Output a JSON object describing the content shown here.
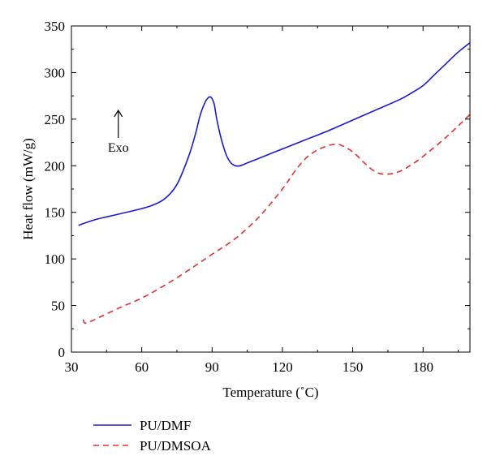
{
  "chart_data": {
    "type": "line",
    "xlabel": "Temperature (˚C)",
    "ylabel": "Heat flow (mW/g)",
    "xlim": [
      30,
      200
    ],
    "ylim": [
      0,
      350
    ],
    "xticks": [
      30,
      60,
      90,
      120,
      150,
      180
    ],
    "yticks": [
      0,
      50,
      100,
      150,
      200,
      250,
      300,
      350
    ],
    "grid": false,
    "legend_position": "bottom-left",
    "annotation": {
      "text": "Exo",
      "x": 50,
      "y": 230
    },
    "series": [
      {
        "name": "PU/DMF",
        "color": "#1a1acc",
        "dash": "solid",
        "x": [
          33,
          40,
          50,
          60,
          65,
          70,
          75,
          80,
          83,
          85,
          87,
          88,
          89,
          90,
          91,
          92,
          94,
          96,
          98,
          100,
          102,
          105,
          110,
          120,
          130,
          140,
          150,
          160,
          170,
          175,
          180,
          185,
          190,
          195,
          200
        ],
        "y": [
          136,
          142,
          148,
          154,
          158,
          165,
          180,
          210,
          235,
          255,
          268,
          272,
          274,
          272,
          265,
          250,
          228,
          212,
          203,
          200,
          200,
          203,
          208,
          218,
          228,
          238,
          249,
          260,
          271,
          278,
          286,
          298,
          310,
          322,
          332
        ]
      },
      {
        "name": "PU/DMSOA",
        "color": "#e03030",
        "dash": "dashed",
        "x": [
          35,
          36,
          40,
          50,
          60,
          70,
          80,
          90,
          100,
          110,
          120,
          125,
          130,
          135,
          140,
          143,
          145,
          150,
          155,
          160,
          165,
          170,
          175,
          180,
          190,
          200
        ],
        "y": [
          35,
          31,
          35,
          47,
          58,
          72,
          88,
          105,
          122,
          145,
          175,
          193,
          208,
          217,
          222,
          223,
          222,
          215,
          203,
          193,
          191,
          194,
          201,
          210,
          231,
          255
        ]
      }
    ]
  }
}
